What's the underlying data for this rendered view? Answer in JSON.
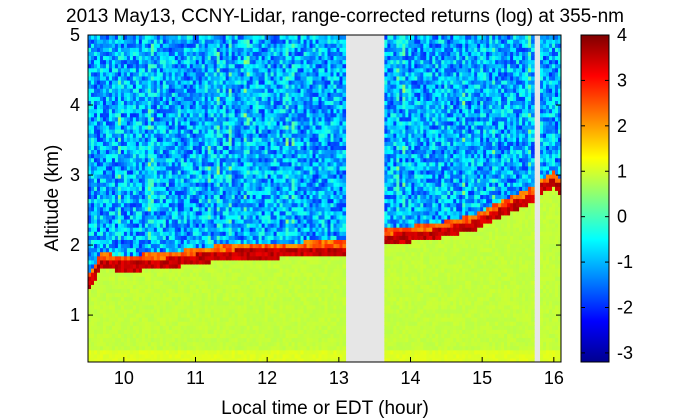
{
  "chart_data": {
    "type": "heatmap",
    "title": "2013 May13, CCNY-Lidar, range-corrected returns (log) at 355-nm",
    "xlabel": "Local time or EDT (hour)",
    "ylabel": "Altitude (km)",
    "xlim": [
      9.5,
      16.1
    ],
    "ylim": [
      0.33,
      5.0
    ],
    "xticks": [
      "10",
      "11",
      "12",
      "13",
      "14",
      "15",
      "16"
    ],
    "yticks": [
      "1",
      "2",
      "3",
      "4",
      "5"
    ],
    "colorbar": {
      "range": [
        -3.2,
        4.0
      ],
      "ticks": [
        "4",
        "3",
        "2",
        "1",
        "0",
        "-1",
        "-2",
        "-3"
      ],
      "stops": [
        "#00008f",
        "#0000ff",
        "#0080ff",
        "#00ffff",
        "#80ff80",
        "#ffff00",
        "#ff8000",
        "#ff0000",
        "#800000"
      ]
    },
    "data_gaps_hours": [
      [
        13.08,
        13.62
      ],
      [
        15.73,
        15.8
      ]
    ],
    "boundary_layer_top_km": {
      "x": [
        9.5,
        9.7,
        9.9,
        10.2,
        10.5,
        10.8,
        11.0,
        11.3,
        11.6,
        11.9,
        12.2,
        12.5,
        12.8,
        13.08,
        13.62,
        13.9,
        14.2,
        14.5,
        14.7,
        14.9,
        15.1,
        15.3,
        15.5,
        15.73,
        15.8,
        15.9,
        16.0,
        16.1
      ],
      "y": [
        1.45,
        1.75,
        1.72,
        1.72,
        1.75,
        1.78,
        1.82,
        1.85,
        1.88,
        1.88,
        1.9,
        1.9,
        1.93,
        1.93,
        2.1,
        2.12,
        2.15,
        2.2,
        2.25,
        2.3,
        2.4,
        2.5,
        2.6,
        2.7,
        2.8,
        2.85,
        2.9,
        2.8
      ]
    }
  }
}
